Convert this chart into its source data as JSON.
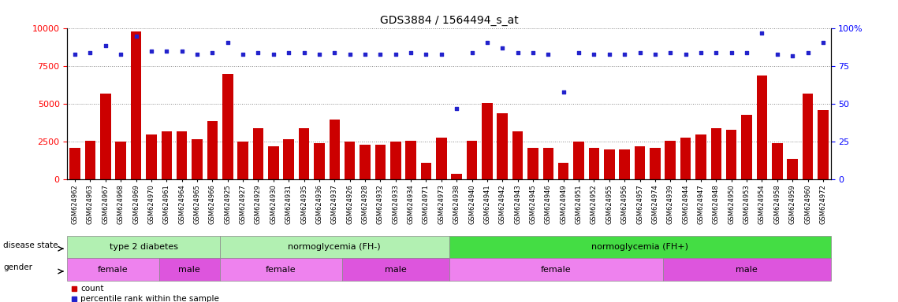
{
  "title": "GDS3884 / 1564494_s_at",
  "samples": [
    "GSM624962",
    "GSM624963",
    "GSM624967",
    "GSM624968",
    "GSM624969",
    "GSM624970",
    "GSM624961",
    "GSM624964",
    "GSM624965",
    "GSM624966",
    "GSM624925",
    "GSM624927",
    "GSM624929",
    "GSM624930",
    "GSM624931",
    "GSM624935",
    "GSM624936",
    "GSM624937",
    "GSM624926",
    "GSM624928",
    "GSM624932",
    "GSM624933",
    "GSM624934",
    "GSM624971",
    "GSM624973",
    "GSM624938",
    "GSM624940",
    "GSM624941",
    "GSM624942",
    "GSM624943",
    "GSM624945",
    "GSM624946",
    "GSM624949",
    "GSM624951",
    "GSM624952",
    "GSM624955",
    "GSM624956",
    "GSM624957",
    "GSM624974",
    "GSM624939",
    "GSM624944",
    "GSM624947",
    "GSM624948",
    "GSM624950",
    "GSM624953",
    "GSM624954",
    "GSM624958",
    "GSM624959",
    "GSM624960",
    "GSM624972"
  ],
  "counts": [
    2100,
    2600,
    5700,
    2500,
    9800,
    3000,
    3200,
    3200,
    2700,
    3900,
    7000,
    2500,
    3400,
    2200,
    2700,
    3400,
    2400,
    4000,
    2500,
    2300,
    2300,
    2500,
    2600,
    1100,
    2800,
    400,
    2600,
    5100,
    4400,
    3200,
    2100,
    2100,
    1100,
    2500,
    2100,
    2000,
    2000,
    2200,
    2100,
    2600,
    2800,
    3000,
    3400,
    3300,
    4300,
    6900,
    2400,
    1400,
    5700,
    4600
  ],
  "percentiles": [
    83,
    84,
    89,
    83,
    95,
    85,
    85,
    85,
    83,
    84,
    91,
    83,
    84,
    83,
    84,
    84,
    83,
    84,
    83,
    83,
    83,
    83,
    84,
    83,
    83,
    47,
    84,
    91,
    87,
    84,
    84,
    83,
    58,
    84,
    83,
    83,
    83,
    84,
    83,
    84,
    83,
    84,
    84,
    84,
    84,
    97,
    83,
    82,
    84,
    91
  ],
  "disease_state_groups": [
    {
      "label": "type 2 diabetes",
      "start": 0,
      "end": 9,
      "color": "#b2f0b2"
    },
    {
      "label": "normoglycemia (FH-)",
      "start": 10,
      "end": 24,
      "color": "#b2f0b2"
    },
    {
      "label": "normoglycemia (FH+)",
      "start": 25,
      "end": 49,
      "color": "#44dd44"
    }
  ],
  "gender_groups": [
    {
      "label": "female",
      "start": 0,
      "end": 5,
      "color": "#ee82ee"
    },
    {
      "label": "male",
      "start": 6,
      "end": 9,
      "color": "#dd55dd"
    },
    {
      "label": "female",
      "start": 10,
      "end": 17,
      "color": "#ee82ee"
    },
    {
      "label": "male",
      "start": 18,
      "end": 24,
      "color": "#dd55dd"
    },
    {
      "label": "female",
      "start": 25,
      "end": 38,
      "color": "#ee82ee"
    },
    {
      "label": "male",
      "start": 39,
      "end": 49,
      "color": "#dd55dd"
    }
  ],
  "bar_color": "#cc0000",
  "scatter_color": "#2222cc",
  "ylim_left": [
    0,
    10000
  ],
  "ylim_right": [
    0,
    100
  ],
  "yticks_left": [
    0,
    2500,
    5000,
    7500,
    10000
  ],
  "yticks_right": [
    0,
    25,
    50,
    75,
    100
  ],
  "grid_color": "#888888"
}
